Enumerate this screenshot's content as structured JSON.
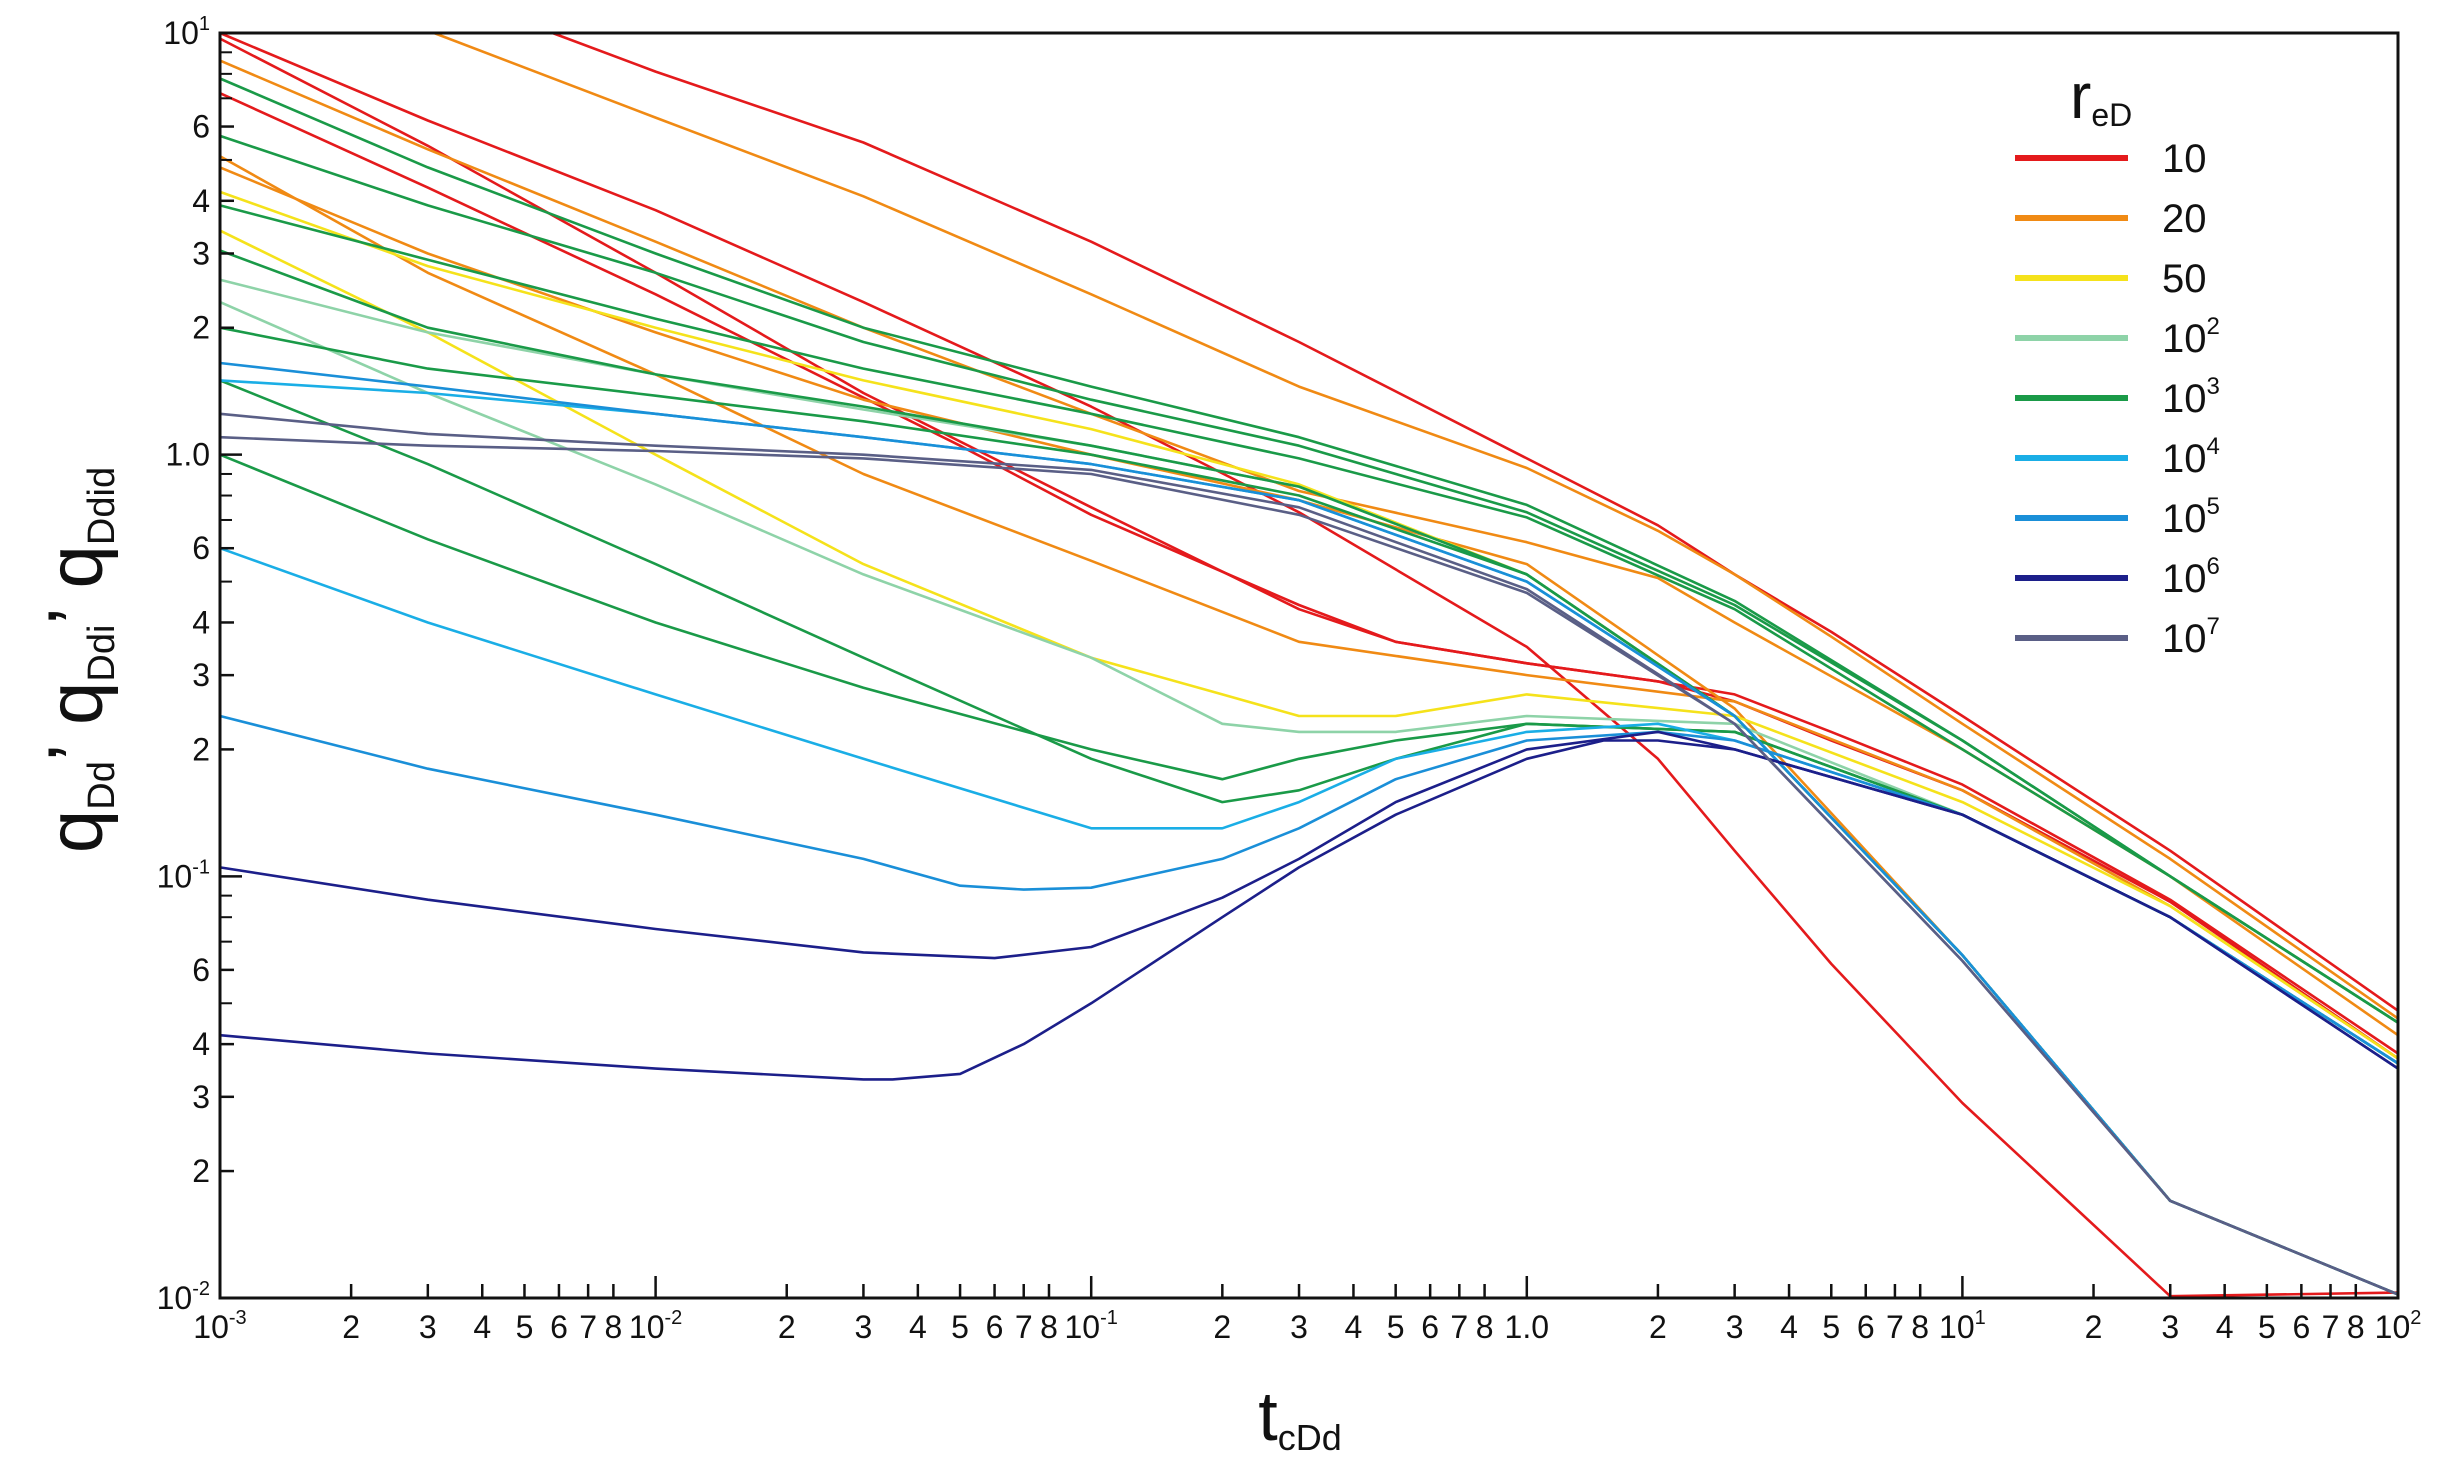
{
  "chart_data": {
    "type": "line",
    "x_scale": "log",
    "y_scale": "log",
    "xlim": [
      0.001,
      100
    ],
    "ylim": [
      0.01,
      10
    ],
    "xlabel": {
      "main": "t",
      "sub": "cDd"
    },
    "ylabel": [
      {
        "main": "q",
        "sub": "Dd"
      },
      {
        "main": "q",
        "sub": "Ddi"
      },
      {
        "main": "q",
        "sub": "Ddid"
      }
    ],
    "y_separator": "’",
    "x_ticks": [
      {
        "v": 0.001,
        "base": "10",
        "exp": "-3",
        "major": true
      },
      {
        "v": 0.002,
        "label": "2"
      },
      {
        "v": 0.003,
        "label": "3"
      },
      {
        "v": 0.004,
        "label": "4"
      },
      {
        "v": 0.005,
        "label": "5"
      },
      {
        "v": 0.006,
        "label": "6"
      },
      {
        "v": 0.007,
        "label": "7"
      },
      {
        "v": 0.008,
        "label": "8"
      },
      {
        "v": 0.01,
        "base": "10",
        "exp": "-2",
        "major": true
      },
      {
        "v": 0.02,
        "label": "2"
      },
      {
        "v": 0.03,
        "label": "3"
      },
      {
        "v": 0.04,
        "label": "4"
      },
      {
        "v": 0.05,
        "label": "5"
      },
      {
        "v": 0.06,
        "label": "6"
      },
      {
        "v": 0.07,
        "label": "7"
      },
      {
        "v": 0.08,
        "label": "8"
      },
      {
        "v": 0.1,
        "base": "10",
        "exp": "-1",
        "major": true
      },
      {
        "v": 0.2,
        "label": "2"
      },
      {
        "v": 0.3,
        "label": "3"
      },
      {
        "v": 0.4,
        "label": "4"
      },
      {
        "v": 0.5,
        "label": "5"
      },
      {
        "v": 0.6,
        "label": "6"
      },
      {
        "v": 0.7,
        "label": "7"
      },
      {
        "v": 0.8,
        "label": "8"
      },
      {
        "v": 1,
        "label": "1.0",
        "major": true
      },
      {
        "v": 2,
        "label": "2"
      },
      {
        "v": 3,
        "label": "3"
      },
      {
        "v": 4,
        "label": "4"
      },
      {
        "v": 5,
        "label": "5"
      },
      {
        "v": 6,
        "label": "6"
      },
      {
        "v": 7,
        "label": "7"
      },
      {
        "v": 8,
        "label": "8"
      },
      {
        "v": 10,
        "base": "10",
        "exp": "1",
        "major": true
      },
      {
        "v": 20,
        "label": "2"
      },
      {
        "v": 30,
        "label": "3"
      },
      {
        "v": 40,
        "label": "4"
      },
      {
        "v": 50,
        "label": "5"
      },
      {
        "v": 60,
        "label": "6"
      },
      {
        "v": 70,
        "label": "7"
      },
      {
        "v": 80,
        "label": "8"
      },
      {
        "v": 100,
        "base": "10",
        "exp": "2",
        "major": true
      }
    ],
    "y_ticks": [
      {
        "v": 10,
        "base": "10",
        "exp": "1",
        "major": true
      },
      {
        "v": 6,
        "label": "6"
      },
      {
        "v": 4,
        "label": "4"
      },
      {
        "v": 3,
        "label": "3"
      },
      {
        "v": 2,
        "label": "2"
      },
      {
        "v": 1,
        "label": "1.0",
        "major": true
      },
      {
        "v": 0.6,
        "label": "6"
      },
      {
        "v": 0.4,
        "label": "4"
      },
      {
        "v": 0.3,
        "label": "3"
      },
      {
        "v": 0.2,
        "label": "2"
      },
      {
        "v": 0.1,
        "base": "10",
        "exp": "-1",
        "major": true
      },
      {
        "v": 0.06,
        "label": "6"
      },
      {
        "v": 0.04,
        "label": "4"
      },
      {
        "v": 0.03,
        "label": "3"
      },
      {
        "v": 0.02,
        "label": "2"
      },
      {
        "v": 0.01,
        "base": "10",
        "exp": "-2",
        "major": true
      }
    ],
    "y_minor_ticks": [
      9,
      8,
      7,
      5,
      0.9,
      0.8,
      0.7,
      0.5,
      0.09,
      0.08,
      0.07,
      0.05
    ],
    "legend": {
      "position": "top-right",
      "title": {
        "main": "r",
        "sub": "eD"
      },
      "entries": [
        {
          "label": "10",
          "color": "#e41a1c"
        },
        {
          "label": "20",
          "color": "#f08a14"
        },
        {
          "label": "50",
          "color": "#f5e21b"
        },
        {
          "base": "10",
          "exp": "2",
          "color": "#8ed3a8"
        },
        {
          "base": "10",
          "exp": "3",
          "color": "#1a9a48"
        },
        {
          "base": "10",
          "exp": "4",
          "color": "#1aaee6"
        },
        {
          "base": "10",
          "exp": "5",
          "color": "#1a8fd8"
        },
        {
          "base": "10",
          "exp": "6",
          "color": "#1c1f8a"
        },
        {
          "base": "10",
          "exp": "7",
          "color": "#5a5f86"
        }
      ]
    },
    "series": [
      {
        "color": "#e41a1c",
        "x": [
          0.001,
          0.003,
          0.01,
          0.03,
          0.1,
          0.3,
          1,
          2,
          3,
          5,
          10,
          30,
          100
        ],
        "y": [
          10,
          6.2,
          3.8,
          2.3,
          1.3,
          0.73,
          0.35,
          0.19,
          0.115,
          0.062,
          0.029,
          0.0101,
          0.0103
        ]
      },
      {
        "color": "#e41a1c",
        "x": [
          0.001,
          0.003,
          0.01,
          0.05,
          0.1,
          0.3,
          0.5,
          1,
          2,
          3,
          5,
          10,
          30,
          100
        ],
        "y": [
          7.2,
          4.3,
          2.4,
          1.05,
          0.72,
          0.44,
          0.36,
          0.32,
          0.29,
          0.26,
          0.21,
          0.16,
          0.087,
          0.037
        ]
      },
      {
        "color": "#e41a1c",
        "x": [
          0.001,
          0.003,
          0.01,
          0.03,
          0.1,
          0.3,
          0.5,
          1,
          2,
          3,
          5,
          10,
          30,
          100
        ],
        "y": [
          9.7,
          5.4,
          2.7,
          1.4,
          0.75,
          0.43,
          0.36,
          0.32,
          0.29,
          0.27,
          0.22,
          0.165,
          0.088,
          0.038
        ]
      },
      {
        "color": "#e41a1c",
        "x": [
          0.0058,
          0.01,
          0.03,
          0.1,
          0.3,
          1,
          2,
          3,
          5,
          10,
          30,
          100
        ],
        "y": [
          10,
          8.1,
          5.5,
          3.2,
          1.85,
          0.98,
          0.68,
          0.52,
          0.38,
          0.24,
          0.115,
          0.048
        ]
      },
      {
        "color": "#f08a14",
        "x": [
          0.001,
          0.003,
          0.01,
          0.03,
          0.1,
          0.3,
          1,
          3,
          10,
          30,
          100
        ],
        "y": [
          5.1,
          2.7,
          1.55,
          0.9,
          0.56,
          0.36,
          0.3,
          0.26,
          0.16,
          0.085,
          0.037
        ]
      },
      {
        "color": "#f08a14",
        "x": [
          0.0031,
          0.01,
          0.03,
          0.1,
          0.3,
          1,
          2,
          3,
          5,
          10,
          30,
          100
        ],
        "y": [
          10,
          6.3,
          4.1,
          2.4,
          1.45,
          0.93,
          0.66,
          0.52,
          0.37,
          0.23,
          0.11,
          0.046
        ]
      },
      {
        "color": "#f08a14",
        "x": [
          0.001,
          0.003,
          0.01,
          0.03,
          0.1,
          0.3,
          1,
          2,
          3,
          10,
          30,
          100
        ],
        "y": [
          8.6,
          5.3,
          3.2,
          2.0,
          1.25,
          0.82,
          0.62,
          0.51,
          0.4,
          0.2,
          0.1,
          0.042
        ]
      },
      {
        "color": "#f08a14",
        "x": [
          0.001,
          0.003,
          0.01,
          0.03,
          0.1,
          0.3,
          1,
          3,
          10,
          30,
          100
        ],
        "y": [
          4.8,
          3.0,
          1.95,
          1.35,
          1.0,
          0.78,
          0.55,
          0.25,
          0.065,
          0.017,
          0.0102
        ]
      },
      {
        "color": "#f5e21b",
        "x": [
          0.001,
          0.003,
          0.01,
          0.03,
          0.1,
          0.2,
          0.3,
          0.5,
          1,
          3,
          10,
          30,
          100
        ],
        "y": [
          3.4,
          1.95,
          1.0,
          0.55,
          0.33,
          0.27,
          0.24,
          0.24,
          0.27,
          0.24,
          0.15,
          0.085,
          0.037
        ]
      },
      {
        "color": "#f5e21b",
        "x": [
          0.001,
          0.003,
          0.01,
          0.03,
          0.1,
          0.3,
          1,
          3,
          10,
          30,
          100
        ],
        "y": [
          4.2,
          2.8,
          2.0,
          1.5,
          1.15,
          0.85,
          0.52,
          0.24,
          0.065,
          0.017,
          0.0102
        ]
      },
      {
        "color": "#8ed3a8",
        "x": [
          0.001,
          0.003,
          0.01,
          0.03,
          0.1,
          0.2,
          0.3,
          0.5,
          1,
          3,
          10,
          30,
          100
        ],
        "y": [
          2.3,
          1.4,
          0.85,
          0.52,
          0.33,
          0.23,
          0.22,
          0.22,
          0.24,
          0.23,
          0.14,
          0.08,
          0.036
        ]
      },
      {
        "color": "#8ed3a8",
        "x": [
          0.001,
          0.003,
          0.01,
          0.03,
          0.1,
          0.3,
          1,
          3,
          10,
          30,
          100
        ],
        "y": [
          2.6,
          1.95,
          1.55,
          1.28,
          1.05,
          0.84,
          0.52,
          0.24,
          0.065,
          0.017,
          0.0102
        ]
      },
      {
        "color": "#1a9a48",
        "x": [
          0.001,
          0.003,
          0.01,
          0.03,
          0.1,
          0.2,
          0.3,
          0.5,
          1,
          3,
          10,
          30,
          100
        ],
        "y": [
          1.0,
          0.63,
          0.4,
          0.28,
          0.2,
          0.17,
          0.19,
          0.21,
          0.23,
          0.22,
          0.14,
          0.08,
          0.036
        ]
      },
      {
        "color": "#1a9a48",
        "x": [
          0.001,
          0.003,
          0.01,
          0.03,
          0.1,
          0.2,
          0.3,
          0.5,
          1,
          3,
          10,
          30,
          100
        ],
        "y": [
          1.5,
          0.95,
          0.55,
          0.33,
          0.19,
          0.15,
          0.16,
          0.19,
          0.23,
          0.22,
          0.14,
          0.08,
          0.036
        ]
      },
      {
        "color": "#1a9a48",
        "x": [
          0.001,
          0.003,
          0.01,
          0.03,
          0.1,
          0.3,
          1,
          3,
          10,
          30,
          100
        ],
        "y": [
          3.05,
          2.0,
          1.55,
          1.3,
          1.05,
          0.84,
          0.52,
          0.24,
          0.065,
          0.017,
          0.0102
        ]
      },
      {
        "color": "#1a9a48",
        "x": [
          0.001,
          0.003,
          0.01,
          0.03,
          0.1,
          0.3,
          1,
          3,
          10,
          30,
          100
        ],
        "y": [
          7.8,
          4.8,
          3.0,
          2.0,
          1.45,
          1.1,
          0.76,
          0.45,
          0.21,
          0.1,
          0.045
        ]
      },
      {
        "color": "#1a9a48",
        "x": [
          0.001,
          0.003,
          0.01,
          0.03,
          0.1,
          0.3,
          1,
          3,
          10,
          30,
          100
        ],
        "y": [
          5.7,
          3.9,
          2.7,
          1.85,
          1.35,
          1.05,
          0.73,
          0.44,
          0.21,
          0.1,
          0.045
        ]
      },
      {
        "color": "#1a9a48",
        "x": [
          0.001,
          0.003,
          0.01,
          0.03,
          0.1,
          0.3,
          1,
          3,
          10,
          30,
          100
        ],
        "y": [
          3.9,
          2.9,
          2.1,
          1.6,
          1.25,
          0.98,
          0.71,
          0.43,
          0.2,
          0.1,
          0.045
        ]
      },
      {
        "color": "#1a9a48",
        "x": [
          0.001,
          0.003,
          0.01,
          0.03,
          0.1,
          0.3,
          1,
          3,
          10,
          30,
          100
        ],
        "y": [
          2.0,
          1.6,
          1.38,
          1.2,
          1.0,
          0.8,
          0.52,
          0.24,
          0.065,
          0.017,
          0.0102
        ]
      },
      {
        "color": "#1aaee6",
        "x": [
          0.001,
          0.003,
          0.01,
          0.03,
          0.1,
          0.2,
          0.3,
          0.5,
          1,
          2,
          3,
          10,
          30,
          100
        ],
        "y": [
          0.6,
          0.4,
          0.27,
          0.19,
          0.13,
          0.13,
          0.15,
          0.19,
          0.22,
          0.23,
          0.21,
          0.14,
          0.08,
          0.036
        ]
      },
      {
        "color": "#1aaee6",
        "x": [
          0.001,
          0.003,
          0.01,
          0.03,
          0.1,
          0.3,
          1,
          3,
          10,
          30,
          100
        ],
        "y": [
          1.5,
          1.4,
          1.25,
          1.1,
          0.95,
          0.78,
          0.5,
          0.24,
          0.065,
          0.017,
          0.0102
        ]
      },
      {
        "color": "#1a8fd8",
        "x": [
          0.001,
          0.003,
          0.01,
          0.03,
          0.05,
          0.07,
          0.1,
          0.2,
          0.3,
          0.5,
          1,
          2,
          3,
          10,
          30,
          100
        ],
        "y": [
          0.24,
          0.18,
          0.14,
          0.11,
          0.095,
          0.093,
          0.094,
          0.11,
          0.13,
          0.17,
          0.21,
          0.22,
          0.21,
          0.14,
          0.08,
          0.036
        ]
      },
      {
        "color": "#1a8fd8",
        "x": [
          0.001,
          0.003,
          0.01,
          0.03,
          0.1,
          0.3,
          1,
          3,
          10,
          30,
          100
        ],
        "y": [
          1.65,
          1.45,
          1.25,
          1.1,
          0.95,
          0.78,
          0.5,
          0.24,
          0.065,
          0.017,
          0.0102
        ]
      },
      {
        "color": "#1c1f8a",
        "x": [
          0.001,
          0.003,
          0.01,
          0.03,
          0.06,
          0.1,
          0.2,
          0.3,
          0.5,
          1,
          2,
          3,
          10,
          30,
          100
        ],
        "y": [
          0.105,
          0.088,
          0.075,
          0.066,
          0.064,
          0.068,
          0.089,
          0.11,
          0.15,
          0.2,
          0.22,
          0.2,
          0.14,
          0.08,
          0.035
        ]
      },
      {
        "color": "#1c1f8a",
        "x": [
          0.001,
          0.003,
          0.01,
          0.03,
          0.035,
          0.05,
          0.07,
          0.1,
          0.2,
          0.3,
          0.5,
          1,
          1.5,
          2,
          3,
          10,
          30,
          100
        ],
        "y": [
          0.042,
          0.038,
          0.035,
          0.033,
          0.033,
          0.034,
          0.04,
          0.05,
          0.08,
          0.105,
          0.14,
          0.19,
          0.21,
          0.21,
          0.2,
          0.14,
          0.08,
          0.035
        ]
      },
      {
        "color": "#5a5f86",
        "x": [
          0.001,
          0.003,
          0.01,
          0.03,
          0.1,
          0.3,
          1,
          3,
          10,
          30,
          100
        ],
        "y": [
          1.25,
          1.12,
          1.05,
          1.0,
          0.92,
          0.75,
          0.48,
          0.23,
          0.063,
          0.017,
          0.0102
        ]
      },
      {
        "color": "#5a5f86",
        "x": [
          0.001,
          0.003,
          0.01,
          0.03,
          0.1,
          0.3,
          1,
          3,
          10,
          30,
          100
        ],
        "y": [
          1.1,
          1.05,
          1.02,
          0.98,
          0.9,
          0.72,
          0.47,
          0.23,
          0.063,
          0.017,
          0.0102
        ]
      }
    ]
  }
}
